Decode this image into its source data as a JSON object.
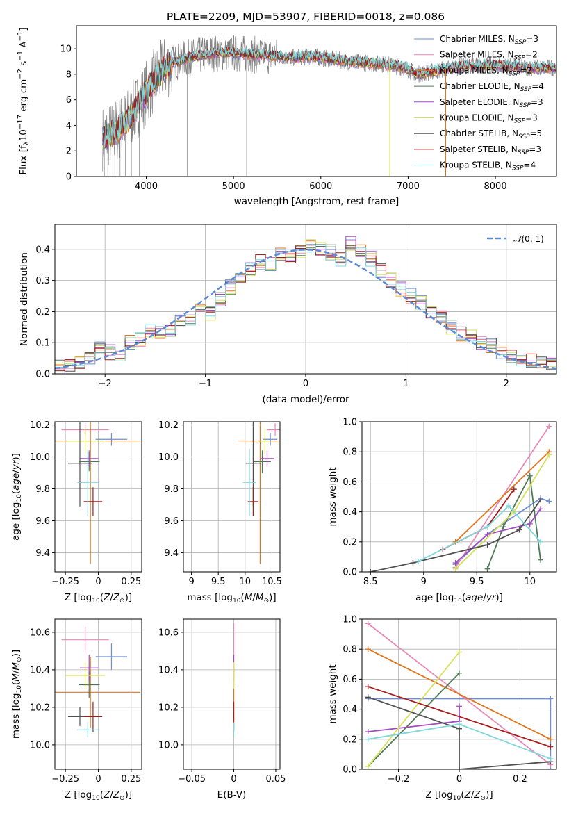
{
  "figure": {
    "title": "PLATE=2209, MJD=53907, FIBERID=0018, z=0.086"
  },
  "colors": {
    "Chabrier MILES": "#6e8fd6",
    "Salpeter MILES": "#e789b8",
    "Kroupa MILES": "#e0741a",
    "Chabrier ELODIE": "#4d7a55",
    "Salpeter ELODIE": "#a24ac2",
    "Kroupa ELODIE": "#d6e05a",
    "Chabrier STELIB": "#505050",
    "Salpeter STELIB": "#a81c1c",
    "Kroupa STELIB": "#7fd6dc",
    "data": "#808080",
    "grid": "#b0b0b0",
    "gaussian": "#5b8bd6"
  },
  "chart_data": [
    {
      "id": "spectrum",
      "type": "line",
      "title": "PLATE=2209, MJD=53907, FIBERID=0018, z=0.086",
      "xlabel": "wavelength [Angstrom, rest frame]",
      "ylabel": "Flux [f_λ 10^-17 erg cm^-2 s^-1 A^-1]",
      "xlim": [
        3200,
        8700
      ],
      "ylim": [
        0,
        11.8
      ],
      "xticks": [
        4000,
        5000,
        6000,
        7000,
        8000
      ],
      "yticks": [
        0,
        2,
        4,
        6,
        8,
        10
      ],
      "grid": false,
      "legend_position": "top-right",
      "legend": [
        "Chabrier MILES, N_SSP=3",
        "Salpeter MILES, N_SSP=2",
        "Kroupa MILES, N_SSP=2",
        "Chabrier ELODIE, N_SSP=4",
        "Salpeter ELODIE, N_SSP=3",
        "Kroupa ELODIE, N_SSP=3",
        "Chabrier STELIB, N_SSP=5",
        "Salpeter STELIB, N_SSP=3",
        "Kroupa STELIB, N_SSP=4"
      ],
      "data_envelope": {
        "x": [
          3500,
          3600,
          3700,
          3800,
          3900,
          4000,
          4100,
          4200,
          4300,
          4500,
          4700,
          4900,
          5100,
          5300,
          5500,
          5700,
          5900,
          6100,
          6300,
          6500,
          6700,
          6900,
          7000,
          7100,
          7200,
          7400,
          7600,
          7800,
          8000,
          8200,
          8400,
          8700
        ],
        "y": [
          3.0,
          3.3,
          3.8,
          4.5,
          5.5,
          6.6,
          7.6,
          8.4,
          8.9,
          9.3,
          9.6,
          9.7,
          9.6,
          9.5,
          9.4,
          9.3,
          9.4,
          9.2,
          9.0,
          8.9,
          8.8,
          8.6,
          8.4,
          8.0,
          8.1,
          8.4,
          8.6,
          8.7,
          8.7,
          8.6,
          8.5,
          8.5
        ]
      }
    },
    {
      "id": "residuals",
      "type": "bar",
      "xlabel": "(data-model)/error",
      "ylabel": "Normed distribution",
      "xlim": [
        -2.5,
        2.5
      ],
      "ylim": [
        0,
        0.48
      ],
      "xticks": [
        -2,
        -1,
        0,
        1,
        2
      ],
      "yticks": [
        0.0,
        0.1,
        0.2,
        0.3,
        0.4
      ],
      "grid": true,
      "legend_position": "top-right",
      "legend": [
        "𝒩(0,1)"
      ],
      "bin_edges": [
        -2.5,
        -2.4,
        -2.3,
        -2.2,
        -2.1,
        -2.0,
        -1.9,
        -1.8,
        -1.7,
        -1.6,
        -1.5,
        -1.4,
        -1.3,
        -1.2,
        -1.1,
        -1.0,
        -0.9,
        -0.8,
        -0.7,
        -0.6,
        -0.5,
        -0.4,
        -0.3,
        -0.2,
        -0.1,
        0.0,
        0.1,
        0.2,
        0.3,
        0.4,
        0.5,
        0.6,
        0.7,
        0.8,
        0.9,
        1.0,
        1.1,
        1.2,
        1.3,
        1.4,
        1.5,
        1.6,
        1.7,
        1.8,
        1.9,
        2.0,
        2.1,
        2.2,
        2.3,
        2.4,
        2.5
      ],
      "histogram": [
        0.02,
        0.03,
        0.04,
        0.05,
        0.08,
        0.07,
        0.06,
        0.1,
        0.11,
        0.14,
        0.13,
        0.14,
        0.17,
        0.18,
        0.2,
        0.19,
        0.24,
        0.28,
        0.31,
        0.34,
        0.36,
        0.35,
        0.38,
        0.37,
        0.39,
        0.41,
        0.4,
        0.39,
        0.37,
        0.42,
        0.39,
        0.37,
        0.33,
        0.3,
        0.27,
        0.25,
        0.23,
        0.2,
        0.18,
        0.15,
        0.13,
        0.12,
        0.1,
        0.09,
        0.07,
        0.06,
        0.05,
        0.04,
        0.04,
        0.03
      ]
    },
    {
      "id": "age-vs-Z",
      "type": "scatter",
      "xlabel": "Z [log10(Z/Z⊙)]",
      "ylabel": "age  [log10(age/yr)]",
      "xlim": [
        -0.33,
        0.33
      ],
      "ylim": [
        9.28,
        10.22
      ],
      "xticks": [
        -0.25,
        0.0,
        0.25
      ],
      "yticks": [
        9.4,
        9.6,
        9.8,
        10.0,
        10.2
      ],
      "grid": true,
      "points": [
        {
          "model": "Chabrier MILES",
          "x": 0.1,
          "y": 10.11,
          "xerr": 0.12,
          "yerr": 0.04
        },
        {
          "model": "Salpeter MILES",
          "x": -0.1,
          "y": 10.17,
          "xerr": 0.18,
          "yerr": 0.04
        },
        {
          "model": "Kroupa MILES",
          "x": -0.06,
          "y": 10.1,
          "xerr": 0.38,
          "yerr": 0.77
        },
        {
          "model": "Chabrier ELODIE",
          "x": -0.07,
          "y": 9.97,
          "xerr": 0.08,
          "yerr": 0.06
        },
        {
          "model": "Salpeter ELODIE",
          "x": -0.07,
          "y": 9.99,
          "xerr": 0.07,
          "yerr": 0.05
        },
        {
          "model": "Kroupa ELODIE",
          "x": -0.1,
          "y": 10.1,
          "xerr": 0.15,
          "yerr": 0.08
        },
        {
          "model": "Chabrier STELIB",
          "x": -0.14,
          "y": 9.96,
          "xerr": 0.09,
          "yerr": 0.27
        },
        {
          "model": "Salpeter STELIB",
          "x": -0.04,
          "y": 9.72,
          "xerr": 0.07,
          "yerr": 0.09
        },
        {
          "model": "Kroupa STELIB",
          "x": -0.08,
          "y": 9.84,
          "xerr": 0.08,
          "yerr": 0.21
        }
      ]
    },
    {
      "id": "age-vs-mass",
      "type": "scatter",
      "xlabel": "mass [log10(M/M⊙)]",
      "xlim": [
        8.85,
        10.65
      ],
      "ylim": [
        9.28,
        10.22
      ],
      "xticks": [
        9.0,
        9.5,
        10.0,
        10.5
      ],
      "yticks": [
        9.4,
        9.6,
        9.8,
        10.0,
        10.2
      ],
      "grid": true,
      "points": [
        {
          "model": "Chabrier MILES",
          "x": 10.47,
          "y": 10.11,
          "xerr": 0.13,
          "yerr": 0.04
        },
        {
          "model": "Salpeter MILES",
          "x": 10.56,
          "y": 10.17,
          "xerr": 0.16,
          "yerr": 0.04
        },
        {
          "model": "Kroupa MILES",
          "x": 10.28,
          "y": 10.1,
          "xerr": 0.4,
          "yerr": 0.77
        },
        {
          "model": "Chabrier ELODIE",
          "x": 10.32,
          "y": 9.97,
          "xerr": 0.16,
          "yerr": 0.07
        },
        {
          "model": "Salpeter ELODIE",
          "x": 10.41,
          "y": 9.99,
          "xerr": 0.13,
          "yerr": 0.05
        },
        {
          "model": "Kroupa ELODIE",
          "x": 10.37,
          "y": 10.1,
          "xerr": 0.12,
          "yerr": 0.08
        },
        {
          "model": "Chabrier STELIB",
          "x": 10.15,
          "y": 9.96,
          "xerr": 0.14,
          "yerr": 0.27
        },
        {
          "model": "Salpeter STELIB",
          "x": 10.15,
          "y": 9.72,
          "xerr": 0.1,
          "yerr": 0.09
        },
        {
          "model": "Kroupa STELIB",
          "x": 10.08,
          "y": 9.84,
          "xerr": 0.12,
          "yerr": 0.21
        }
      ]
    },
    {
      "id": "weight-vs-age",
      "type": "line",
      "xlabel": "age  [log10(age/yr)]",
      "ylabel": "mass weight",
      "xlim": [
        8.42,
        10.25
      ],
      "ylim": [
        0.0,
        1.0
      ],
      "xticks": [
        8.5,
        9.0,
        9.5,
        10.0
      ],
      "yticks": [
        0.0,
        0.2,
        0.4,
        0.6,
        0.8,
        1.0
      ],
      "grid": true,
      "series": [
        {
          "model": "Chabrier MILES",
          "x": [
            9.3,
            9.6,
            10.1,
            10.18
          ],
          "y": [
            0.05,
            0.25,
            0.49,
            0.47
          ]
        },
        {
          "model": "Salpeter MILES",
          "x": [
            9.3,
            10.18
          ],
          "y": [
            0.03,
            0.97
          ]
        },
        {
          "model": "Kroupa MILES",
          "x": [
            9.3,
            10.18
          ],
          "y": [
            0.2,
            0.8
          ]
        },
        {
          "model": "Chabrier ELODIE",
          "x": [
            9.6,
            9.75,
            10.0,
            10.1
          ],
          "y": [
            0.02,
            0.3,
            0.64,
            0.08
          ]
        },
        {
          "model": "Salpeter ELODIE",
          "x": [
            9.3,
            9.6,
            10.0,
            10.1
          ],
          "y": [
            0.06,
            0.25,
            0.32,
            0.42
          ]
        },
        {
          "model": "Kroupa ELODIE",
          "x": [
            9.3,
            9.85,
            10.18
          ],
          "y": [
            0.02,
            0.4,
            0.78
          ]
        },
        {
          "model": "Chabrier STELIB",
          "x": [
            8.5,
            8.9,
            9.6,
            9.9,
            10.1
          ],
          "y": [
            0.0,
            0.06,
            0.18,
            0.28,
            0.48
          ]
        },
        {
          "model": "Salpeter STELIB",
          "x": [
            9.18,
            9.6,
            9.85
          ],
          "y": [
            0.15,
            0.3,
            0.55
          ]
        },
        {
          "model": "Kroupa STELIB",
          "x": [
            8.95,
            9.6,
            9.8,
            10.1
          ],
          "y": [
            0.07,
            0.3,
            0.44,
            0.2
          ]
        }
      ]
    },
    {
      "id": "mass-vs-Z",
      "type": "scatter",
      "xlabel": "Z [log10(Z/Z⊙)]",
      "ylabel": "mass [log10(M/M⊙)]",
      "xlim": [
        -0.33,
        0.33
      ],
      "ylim": [
        9.87,
        10.67
      ],
      "xticks": [
        -0.25,
        0.0,
        0.25
      ],
      "yticks": [
        10.0,
        10.2,
        10.4,
        10.6
      ],
      "grid": true,
      "points": [
        {
          "model": "Chabrier MILES",
          "x": 0.1,
          "y": 10.47,
          "xerr": 0.12,
          "yerr": 0.07
        },
        {
          "model": "Salpeter MILES",
          "x": -0.1,
          "y": 10.56,
          "xerr": 0.18,
          "yerr": 0.07
        },
        {
          "model": "Kroupa MILES",
          "x": -0.06,
          "y": 10.28,
          "xerr": 0.38,
          "yerr": 0.19
        },
        {
          "model": "Chabrier ELODIE",
          "x": -0.07,
          "y": 10.32,
          "xerr": 0.08,
          "yerr": 0.07
        },
        {
          "model": "Salpeter ELODIE",
          "x": -0.07,
          "y": 10.41,
          "xerr": 0.07,
          "yerr": 0.07
        },
        {
          "model": "Kroupa ELODIE",
          "x": -0.1,
          "y": 10.37,
          "xerr": 0.15,
          "yerr": 0.07
        },
        {
          "model": "Chabrier STELIB",
          "x": -0.14,
          "y": 10.15,
          "xerr": 0.09,
          "yerr": 0.05
        },
        {
          "model": "Salpeter STELIB",
          "x": -0.04,
          "y": 10.15,
          "xerr": 0.07,
          "yerr": 0.08
        },
        {
          "model": "Kroupa STELIB",
          "x": -0.08,
          "y": 10.08,
          "xerr": 0.08,
          "yerr": 0.04
        }
      ]
    },
    {
      "id": "mass-vs-EBV",
      "type": "scatter",
      "xlabel": "E(B-V)",
      "xlim": [
        -0.06,
        0.055
      ],
      "ylim": [
        9.87,
        10.67
      ],
      "xticks": [
        -0.05,
        0.0,
        0.05
      ],
      "yticks": [
        10.0,
        10.2,
        10.4,
        10.6
      ],
      "grid": true,
      "points": [
        {
          "model": "Salpeter MILES",
          "x": 0.0,
          "y": 10.56,
          "yerr": 0.09
        },
        {
          "model": "Kroupa MILES",
          "x": 0.0,
          "y": 10.28,
          "yerr": 0.19
        },
        {
          "model": "Salpeter ELODIE",
          "x": 0.0,
          "y": 10.41,
          "yerr": 0.07
        },
        {
          "model": "Kroupa ELODIE",
          "x": 0.0,
          "y": 10.37,
          "yerr": 0.07
        },
        {
          "model": "Salpeter STELIB",
          "x": 0.0,
          "y": 10.15,
          "yerr": 0.08
        },
        {
          "model": "Kroupa STELIB",
          "x": 0.0,
          "y": 10.08,
          "yerr": 0.04
        }
      ]
    },
    {
      "id": "weight-vs-Z",
      "type": "line",
      "xlabel": "Z [log10(Z/Z⊙)]",
      "ylabel": "mass weight",
      "xlim": [
        -0.32,
        0.32
      ],
      "ylim": [
        0.0,
        1.0
      ],
      "xticks": [
        -0.2,
        0.0,
        0.2
      ],
      "yticks": [
        0.0,
        0.2,
        0.4,
        0.6,
        0.8,
        1.0
      ],
      "grid": true,
      "series": [
        {
          "model": "Chabrier MILES",
          "x": [
            -0.3,
            0.3,
            0.3,
            0.3
          ],
          "y": [
            0.47,
            0.47,
            0.0,
            0.47
          ]
        },
        {
          "model": "Salpeter MILES",
          "x": [
            -0.3,
            0.3
          ],
          "y": [
            0.97,
            0.03
          ]
        },
        {
          "model": "Kroupa MILES",
          "x": [
            -0.3,
            0.3
          ],
          "y": [
            0.8,
            0.2
          ]
        },
        {
          "model": "Chabrier ELODIE",
          "x": [
            -0.3,
            0.0
          ],
          "y": [
            0.02,
            0.64
          ]
        },
        {
          "model": "Salpeter ELODIE",
          "x": [
            -0.3,
            0.0,
            0.0
          ],
          "y": [
            0.25,
            0.32,
            0.42
          ]
        },
        {
          "model": "Kroupa ELODIE",
          "x": [
            -0.3,
            0.0
          ],
          "y": [
            0.02,
            0.78
          ]
        },
        {
          "model": "Chabrier STELIB",
          "x": [
            -0.3,
            0.0,
            0.0,
            0.3
          ],
          "y": [
            0.48,
            0.27,
            0.0,
            0.05
          ]
        },
        {
          "model": "Salpeter STELIB",
          "x": [
            -0.3,
            0.3
          ],
          "y": [
            0.55,
            0.15
          ]
        },
        {
          "model": "Kroupa STELIB",
          "x": [
            -0.3,
            0.0,
            0.3
          ],
          "y": [
            0.2,
            0.3,
            0.07
          ]
        }
      ]
    }
  ]
}
